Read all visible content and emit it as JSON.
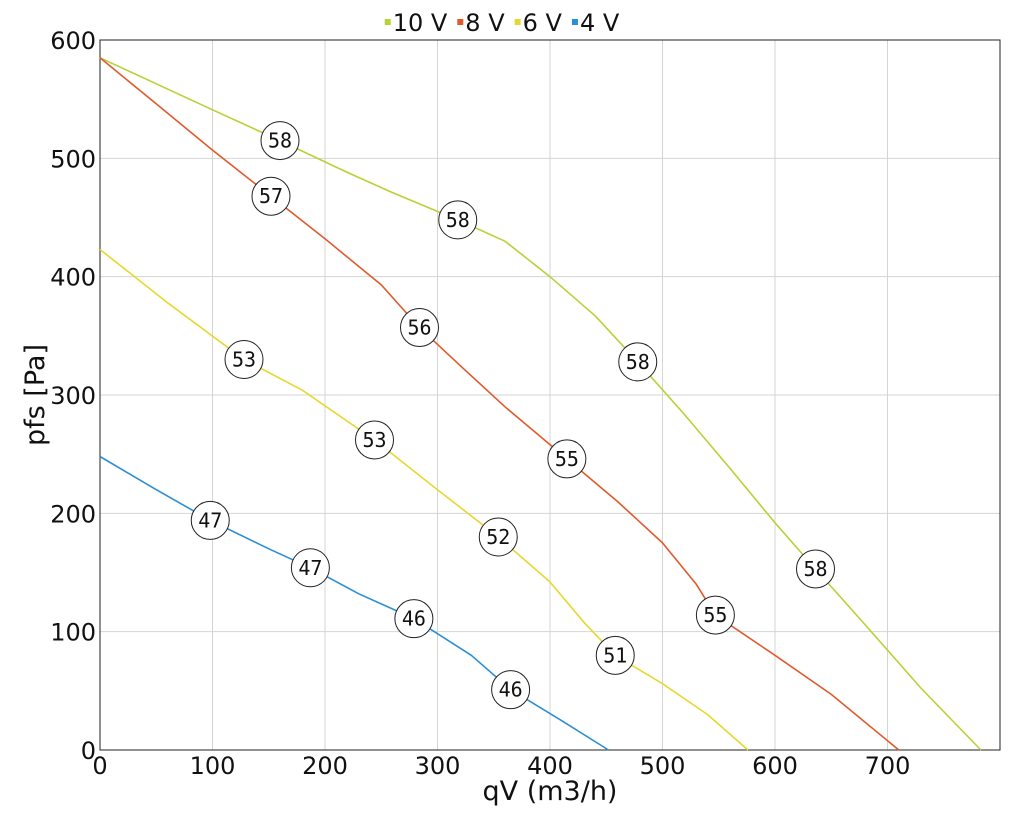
{
  "chart_data": {
    "type": "line",
    "title": "",
    "xlabel": "qV (m3/h)",
    "ylabel": "pfs [Pa]",
    "xlim": [
      0,
      800
    ],
    "ylim": [
      0,
      600
    ],
    "xticks": [
      "0",
      "100",
      "200",
      "300",
      "400",
      "500",
      "600",
      "700"
    ],
    "yticks": [
      "0",
      "100",
      "200",
      "300",
      "400",
      "500",
      "600"
    ],
    "grid": true,
    "legend_position": "top-center",
    "series": [
      {
        "name": "10 V",
        "color": "#b5d334",
        "points": [
          [
            0,
            585
          ],
          [
            50,
            563
          ],
          [
            100,
            541
          ],
          [
            160,
            515
          ],
          [
            220,
            488
          ],
          [
            260,
            471
          ],
          [
            318,
            448
          ],
          [
            360,
            430
          ],
          [
            400,
            400
          ],
          [
            440,
            367
          ],
          [
            478,
            328
          ],
          [
            520,
            283
          ],
          [
            560,
            238
          ],
          [
            600,
            192
          ],
          [
            636,
            153
          ],
          [
            680,
            106
          ],
          [
            730,
            52
          ],
          [
            783,
            0
          ]
        ],
        "labels": [
          {
            "x": 160,
            "y": 515,
            "text": "58"
          },
          {
            "x": 318,
            "y": 448,
            "text": "58"
          },
          {
            "x": 478,
            "y": 328,
            "text": "58"
          },
          {
            "x": 636,
            "y": 153,
            "text": "58"
          }
        ]
      },
      {
        "name": "8 V",
        "color": "#e05a2b",
        "points": [
          [
            0,
            585
          ],
          [
            50,
            546
          ],
          [
            100,
            507
          ],
          [
            152,
            468
          ],
          [
            200,
            432
          ],
          [
            250,
            393
          ],
          [
            284,
            357
          ],
          [
            320,
            325
          ],
          [
            360,
            290
          ],
          [
            415,
            246
          ],
          [
            460,
            210
          ],
          [
            500,
            175
          ],
          [
            530,
            140
          ],
          [
            547,
            114
          ],
          [
            600,
            80
          ],
          [
            650,
            47
          ],
          [
            710,
            0
          ]
        ],
        "labels": [
          {
            "x": 152,
            "y": 468,
            "text": "57"
          },
          {
            "x": 284,
            "y": 357,
            "text": "56"
          },
          {
            "x": 415,
            "y": 246,
            "text": "55"
          },
          {
            "x": 547,
            "y": 114,
            "text": "55"
          }
        ]
      },
      {
        "name": "6 V",
        "color": "#e6d82e",
        "points": [
          [
            0,
            423
          ],
          [
            60,
            378
          ],
          [
            128,
            330
          ],
          [
            180,
            304
          ],
          [
            244,
            262
          ],
          [
            300,
            220
          ],
          [
            354,
            180
          ],
          [
            400,
            142
          ],
          [
            430,
            108
          ],
          [
            458,
            80
          ],
          [
            500,
            56
          ],
          [
            540,
            30
          ],
          [
            576,
            0
          ]
        ],
        "labels": [
          {
            "x": 128,
            "y": 330,
            "text": "53"
          },
          {
            "x": 244,
            "y": 262,
            "text": "53"
          },
          {
            "x": 354,
            "y": 180,
            "text": "52"
          },
          {
            "x": 458,
            "y": 80,
            "text": "51"
          }
        ]
      },
      {
        "name": "4 V",
        "color": "#2a8fd6",
        "points": [
          [
            0,
            248
          ],
          [
            50,
            220
          ],
          [
            98,
            194
          ],
          [
            150,
            170
          ],
          [
            187,
            154
          ],
          [
            230,
            132
          ],
          [
            279,
            111
          ],
          [
            330,
            80
          ],
          [
            365,
            51
          ],
          [
            410,
            25
          ],
          [
            452,
            0
          ]
        ],
        "labels": [
          {
            "x": 98,
            "y": 194,
            "text": "47"
          },
          {
            "x": 187,
            "y": 154,
            "text": "47"
          },
          {
            "x": 279,
            "y": 111,
            "text": "46"
          },
          {
            "x": 365,
            "y": 51,
            "text": "46"
          }
        ]
      }
    ]
  }
}
